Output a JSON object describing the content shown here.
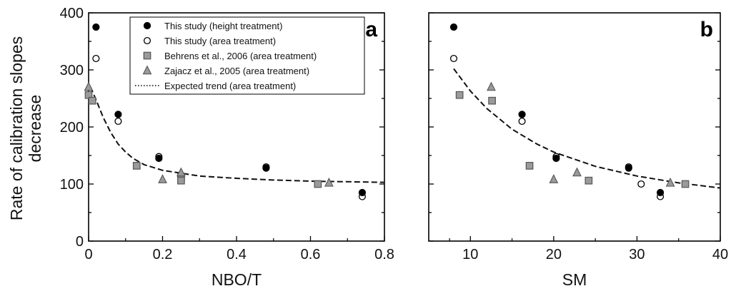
{
  "chart_data": {
    "type": "scatter",
    "ylabel_lines": [
      "Rate of calibration slopes",
      "decrease"
    ],
    "ylim": [
      0,
      400
    ],
    "yticks": [
      0,
      100,
      200,
      300,
      400
    ],
    "legend": {
      "placement": "top-right of panel a",
      "entries": [
        {
          "marker": "filled-circle",
          "label": "This study (height treatment)"
        },
        {
          "marker": "open-circle",
          "label": "This study (area treatment)"
        },
        {
          "marker": "gray-square",
          "label": "Behrens et al., 2006 (area treatment)"
        },
        {
          "marker": "gray-triangle",
          "label": "Zajacz et al., 2005 (area treatment)"
        },
        {
          "marker": "dotted-line",
          "label": "Expected trend (area treatment)"
        }
      ]
    },
    "colors": {
      "gray_fill": "#9a9a9a",
      "gray_stroke": "#555555",
      "ink": "#000000"
    },
    "panels": [
      {
        "label": "a",
        "xlabel": "NBO/T",
        "xlim": [
          0,
          0.8
        ],
        "xticks": [
          "0",
          "0.2",
          "0.4",
          "0.6",
          "0.8"
        ],
        "xtick_values": [
          0,
          0.2,
          0.4,
          0.6,
          0.8
        ],
        "series": [
          {
            "name": "This study (height treatment)",
            "marker": "filled-circle",
            "points": [
              [
                0.02,
                375
              ],
              [
                0.08,
                222
              ],
              [
                0.19,
                145
              ],
              [
                0.48,
                128
              ],
              [
                0.74,
                85
              ]
            ]
          },
          {
            "name": "This study (area treatment)",
            "marker": "open-circle",
            "points": [
              [
                0.02,
                320
              ],
              [
                0.08,
                210
              ],
              [
                0.19,
                148
              ],
              [
                0.48,
                130
              ],
              [
                0.74,
                78
              ]
            ]
          },
          {
            "name": "Behrens et al., 2006 (area treatment)",
            "marker": "gray-square",
            "points": [
              [
                0.0,
                256
              ],
              [
                0.01,
                246
              ],
              [
                0.13,
                132
              ],
              [
                0.25,
                112
              ],
              [
                0.25,
                106
              ],
              [
                0.62,
                100
              ]
            ]
          },
          {
            "name": "Zajacz et al., 2005 (area treatment)",
            "marker": "gray-triangle",
            "points": [
              [
                0.0,
                270
              ],
              [
                0.2,
                108
              ],
              [
                0.25,
                120
              ],
              [
                0.65,
                102
              ]
            ]
          },
          {
            "name": "Expected trend (area treatment)",
            "marker": "dashed-line",
            "points": [
              [
                0.005,
                270
              ],
              [
                0.02,
                248
              ],
              [
                0.04,
                216
              ],
              [
                0.06,
                190
              ],
              [
                0.08,
                170
              ],
              [
                0.1,
                156
              ],
              [
                0.12,
                145
              ],
              [
                0.15,
                134
              ],
              [
                0.2,
                124
              ],
              [
                0.3,
                114
              ],
              [
                0.4,
                110
              ],
              [
                0.5,
                107
              ],
              [
                0.6,
                105
              ],
              [
                0.7,
                104
              ],
              [
                0.8,
                103
              ]
            ]
          }
        ]
      },
      {
        "label": "b",
        "xlabel": "SM",
        "xlim": [
          5,
          40
        ],
        "xticks": [
          "10",
          "20",
          "30",
          "40"
        ],
        "xtick_values": [
          10,
          20,
          30,
          40
        ],
        "series": [
          {
            "name": "This study (height treatment)",
            "marker": "filled-circle",
            "points": [
              [
                8.0,
                375
              ],
              [
                16.2,
                222
              ],
              [
                20.3,
                145
              ],
              [
                29.0,
                128
              ],
              [
                32.8,
                85
              ]
            ]
          },
          {
            "name": "This study (area treatment)",
            "marker": "open-circle",
            "points": [
              [
                8.0,
                320
              ],
              [
                16.2,
                210
              ],
              [
                20.3,
                148
              ],
              [
                29.0,
                130
              ],
              [
                30.5,
                100
              ],
              [
                32.8,
                78
              ]
            ]
          },
          {
            "name": "Behrens et al., 2006 (area treatment)",
            "marker": "gray-square",
            "points": [
              [
                8.7,
                256
              ],
              [
                12.6,
                246
              ],
              [
                17.1,
                132
              ],
              [
                24.2,
                106
              ],
              [
                35.8,
                100
              ]
            ]
          },
          {
            "name": "Zajacz et al., 2005 (area treatment)",
            "marker": "gray-triangle",
            "points": [
              [
                12.5,
                270
              ],
              [
                20.0,
                108
              ],
              [
                22.8,
                120
              ],
              [
                34.0,
                102
              ]
            ]
          },
          {
            "name": "Expected trend (area treatment)",
            "marker": "dashed-line",
            "points": [
              [
                8,
                302
              ],
              [
                10,
                263
              ],
              [
                12,
                232
              ],
              [
                15,
                196
              ],
              [
                18,
                170
              ],
              [
                20,
                156
              ],
              [
                25,
                131
              ],
              [
                30,
                114
              ],
              [
                35,
                102
              ],
              [
                40,
                93
              ]
            ]
          }
        ]
      }
    ]
  }
}
